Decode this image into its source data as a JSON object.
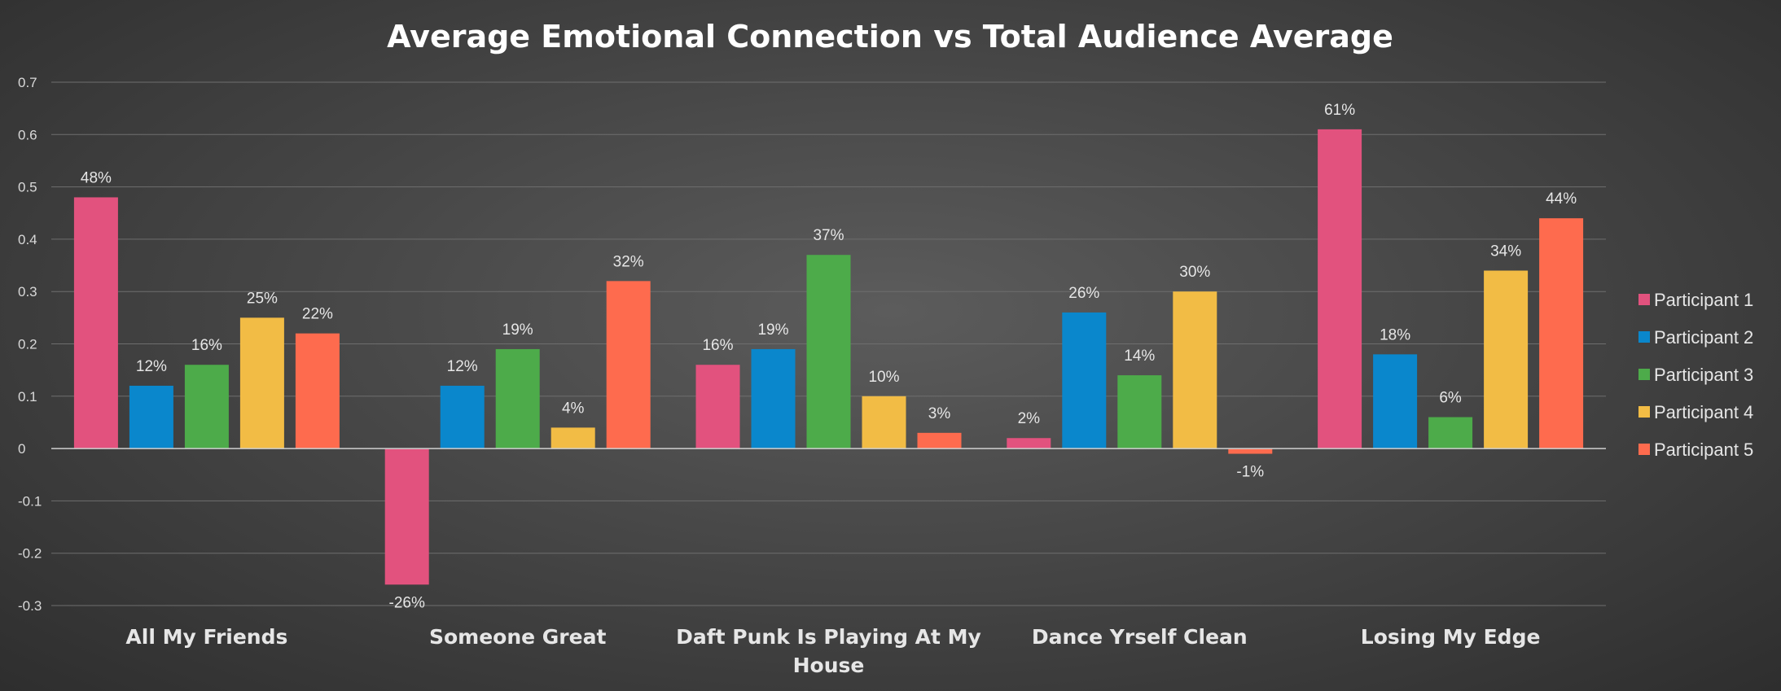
{
  "chart_data": {
    "type": "bar",
    "title": "Average Emotional Connection vs Total Audience  Average",
    "categories": [
      "All My Friends",
      "Someone Great",
      "Daft Punk Is Playing At My House",
      "Dance Yrself Clean",
      "Losing My Edge"
    ],
    "category_lines": [
      [
        "All My Friends"
      ],
      [
        "Someone Great"
      ],
      [
        "Daft Punk Is Playing At My",
        "House"
      ],
      [
        "Dance Yrself Clean"
      ],
      [
        "Losing My Edge"
      ]
    ],
    "ylim": [
      -0.3,
      0.7
    ],
    "yticks": [
      0.7,
      0.6,
      0.5,
      0.4,
      0.3,
      0.2,
      0.1,
      0,
      -0.1,
      -0.2,
      -0.3
    ],
    "ytick_labels": [
      "0.7",
      "0.6",
      "0.5",
      "0.4",
      "0.3",
      "0.2",
      "0.1",
      "0",
      "-0.1",
      "-0.2",
      "-0.3"
    ],
    "grid": true,
    "legend": "right",
    "series": [
      {
        "name": "Participant 1",
        "color": "#e2527e",
        "values": [
          0.48,
          -0.26,
          0.16,
          0.02,
          0.61
        ],
        "labels": [
          "48%",
          "-26%",
          "16%",
          "2%",
          "61%"
        ]
      },
      {
        "name": "Participant 2",
        "color": "#0a87cc",
        "values": [
          0.12,
          0.12,
          0.19,
          0.26,
          0.18
        ],
        "labels": [
          "12%",
          "12%",
          "19%",
          "26%",
          "18%"
        ]
      },
      {
        "name": "Participant 3",
        "color": "#4dab4a",
        "values": [
          0.16,
          0.19,
          0.37,
          0.14,
          0.06
        ],
        "labels": [
          "16%",
          "19%",
          "37%",
          "14%",
          "6%"
        ]
      },
      {
        "name": "Participant 4",
        "color": "#f2bc45",
        "values": [
          0.25,
          0.04,
          0.1,
          0.3,
          0.34
        ],
        "labels": [
          "25%",
          "4%",
          "10%",
          "30%",
          "34%"
        ]
      },
      {
        "name": "Participant 5",
        "color": "#fe6b4e",
        "values": [
          0.22,
          0.32,
          0.03,
          -0.01,
          0.44
        ],
        "labels": [
          "22%",
          "32%",
          "3%",
          "-1%",
          "44%"
        ]
      }
    ]
  }
}
